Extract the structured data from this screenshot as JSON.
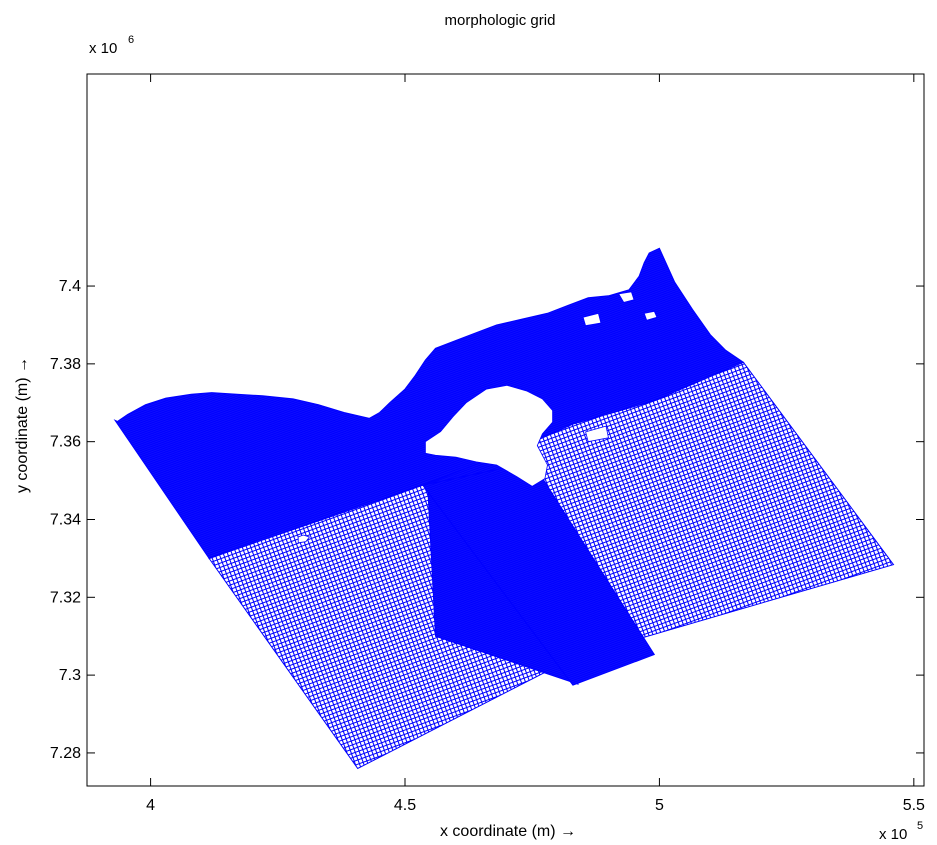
{
  "chart_data": {
    "type": "scatter",
    "title": "morphologic grid",
    "xlabel": "x coordinate (m) →",
    "ylabel": "y coordinate (m) →",
    "x_multiplier": "x 10",
    "x_multiplier_exp": "5",
    "y_multiplier": "x 10",
    "y_multiplier_exp": "6",
    "xlim": [
      3.875,
      5.52
    ],
    "ylim": [
      7.2715,
      7.4545
    ],
    "xticks": [
      {
        "value": 4.0,
        "label": "4"
      },
      {
        "value": 4.5,
        "label": "4.5"
      },
      {
        "value": 5.0,
        "label": "5"
      },
      {
        "value": 5.5,
        "label": "5.5"
      }
    ],
    "yticks": [
      {
        "value": 7.28,
        "label": "7.28"
      },
      {
        "value": 7.3,
        "label": "7.3"
      },
      {
        "value": 7.32,
        "label": "7.32"
      },
      {
        "value": 7.34,
        "label": "7.34"
      },
      {
        "value": 7.36,
        "label": "7.36"
      },
      {
        "value": 7.38,
        "label": "7.38"
      },
      {
        "value": 7.4,
        "label": "7.4"
      }
    ],
    "grid": false,
    "marker_color": "#0000ff",
    "domains": [
      {
        "density": "coarse",
        "polygon": [
          [
            4.115,
            7.3496
          ],
          [
            4.537,
            7.362
          ],
          [
            4.79,
            7.372
          ],
          [
            5.165,
            7.3804
          ],
          [
            5.46,
            7.3284
          ],
          [
            4.83,
            7.3044
          ],
          [
            4.407,
            7.276
          ],
          [
            4.115,
            7.33
          ]
        ]
      },
      {
        "density": "dense",
        "polygon": [
          [
            4.535,
            7.362
          ],
          [
            4.536,
            7.3563
          ],
          [
            4.43,
            7.3553
          ],
          [
            4.115,
            7.3496
          ],
          [
            4.115,
            7.33
          ]
        ]
      },
      {
        "density": "dense",
        "polygon": [
          [
            4.54,
            7.36
          ],
          [
            4.75,
            7.3548
          ],
          [
            4.84,
            7.2977
          ],
          [
            4.56,
            7.31
          ]
        ]
      },
      {
        "density": "dense",
        "polygon": [
          [
            4.535,
            7.3488
          ],
          [
            4.75,
            7.3548
          ],
          [
            4.99,
            7.3053
          ],
          [
            4.83,
            7.2974
          ]
        ]
      },
      {
        "density": "dense",
        "polygon": [
          [
            3.93,
            7.3655
          ],
          [
            3.935,
            7.3652
          ],
          [
            3.955,
            7.367
          ],
          [
            3.99,
            7.3695
          ],
          [
            4.03,
            7.3712
          ],
          [
            4.08,
            7.3722
          ],
          [
            4.12,
            7.3726
          ],
          [
            4.17,
            7.3722
          ],
          [
            4.22,
            7.3718
          ],
          [
            4.28,
            7.371
          ],
          [
            4.33,
            7.3695
          ],
          [
            4.38,
            7.3675
          ],
          [
            4.43,
            7.366
          ],
          [
            4.45,
            7.3675
          ],
          [
            4.47,
            7.37
          ],
          [
            4.5,
            7.3735
          ],
          [
            4.52,
            7.377
          ],
          [
            4.54,
            7.381
          ],
          [
            4.56,
            7.384
          ],
          [
            4.6,
            7.386
          ],
          [
            4.64,
            7.388
          ],
          [
            4.68,
            7.39
          ],
          [
            4.73,
            7.3915
          ],
          [
            4.78,
            7.393
          ],
          [
            4.82,
            7.395
          ],
          [
            4.86,
            7.397
          ],
          [
            4.9,
            7.3975
          ],
          [
            4.94,
            7.399
          ],
          [
            4.96,
            7.4025
          ],
          [
            4.97,
            7.406
          ],
          [
            4.98,
            7.4085
          ],
          [
            5.0,
            7.4097
          ],
          [
            5.03,
            7.401
          ],
          [
            5.065,
            7.394
          ],
          [
            5.1,
            7.3875
          ],
          [
            5.13,
            7.3835
          ],
          [
            5.165,
            7.3804
          ],
          [
            4.99,
            7.3705
          ],
          [
            4.83,
            7.3645
          ],
          [
            4.75,
            7.3598
          ],
          [
            4.535,
            7.3488
          ],
          [
            4.115,
            7.33
          ]
        ]
      }
    ],
    "holes": [
      {
        "polygon": [
          [
            4.54,
            7.36
          ],
          [
            4.57,
            7.3626
          ],
          [
            4.595,
            7.3665
          ],
          [
            4.62,
            7.37
          ],
          [
            4.66,
            7.3735
          ],
          [
            4.7,
            7.3745
          ],
          [
            4.74,
            7.373
          ],
          [
            4.77,
            7.371
          ],
          [
            4.79,
            7.368
          ],
          [
            4.79,
            7.365
          ],
          [
            4.77,
            7.362
          ],
          [
            4.76,
            7.359
          ],
          [
            4.77,
            7.3565
          ],
          [
            4.78,
            7.354
          ],
          [
            4.775,
            7.3505
          ],
          [
            4.75,
            7.3485
          ],
          [
            4.72,
            7.351
          ],
          [
            4.68,
            7.354
          ],
          [
            4.64,
            7.3548
          ],
          [
            4.6,
            7.356
          ],
          [
            4.56,
            7.3565
          ],
          [
            4.54,
            7.357
          ]
        ]
      },
      {
        "polygon": [
          [
            4.29,
            7.334
          ],
          [
            4.305,
            7.3343
          ],
          [
            4.312,
            7.3355
          ],
          [
            4.3,
            7.336
          ],
          [
            4.29,
            7.3355
          ]
        ]
      },
      {
        "polygon": [
          [
            4.92,
            7.398
          ],
          [
            4.945,
            7.3985
          ],
          [
            4.95,
            7.3965
          ],
          [
            4.93,
            7.3958
          ]
        ]
      },
      {
        "polygon": [
          [
            4.97,
            7.393
          ],
          [
            4.99,
            7.3935
          ],
          [
            4.995,
            7.392
          ],
          [
            4.975,
            7.3912
          ]
        ]
      },
      {
        "polygon": [
          [
            4.855,
            7.3625
          ],
          [
            4.895,
            7.364
          ],
          [
            4.9,
            7.361
          ],
          [
            4.86,
            7.36
          ]
        ]
      },
      {
        "polygon": [
          [
            4.85,
            7.392
          ],
          [
            4.88,
            7.393
          ],
          [
            4.885,
            7.3905
          ],
          [
            4.855,
            7.3898
          ]
        ]
      }
    ]
  }
}
